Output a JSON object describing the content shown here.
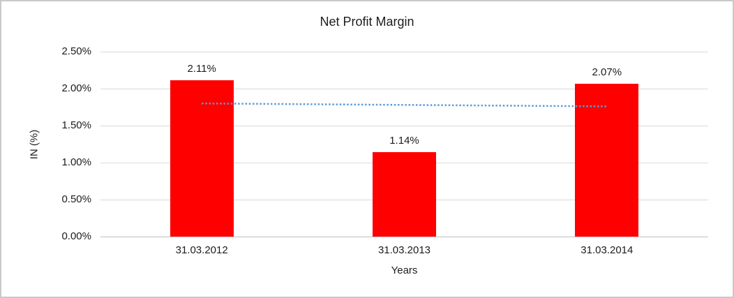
{
  "frame": {
    "background": "#ffffff",
    "border_color": "#c9c9c9"
  },
  "chart_data": {
    "type": "bar",
    "title": "Net Profit Margin",
    "xlabel": "Years",
    "ylabel": "IN (%)",
    "categories": [
      "31.03.2012",
      "31.03.2013",
      "31.03.2014"
    ],
    "values": [
      2.11,
      1.14,
      2.07
    ],
    "data_labels": [
      "2.11%",
      "1.14%",
      "2.07%"
    ],
    "ylim": [
      0,
      2.5
    ],
    "yticks": [
      {
        "v": 0.0,
        "label": "0.00%"
      },
      {
        "v": 0.5,
        "label": "0.50%"
      },
      {
        "v": 1.0,
        "label": "1.00%"
      },
      {
        "v": 1.5,
        "label": "1.50%"
      },
      {
        "v": 2.0,
        "label": "2.00%"
      },
      {
        "v": 2.5,
        "label": "2.50%"
      }
    ],
    "grid": true,
    "legend": "none",
    "bar_color": "#ff0000",
    "grid_color": "#d9d9d9",
    "axis_line_color": "#bfbfbf",
    "trendline": {
      "type": "linear",
      "line_style": "dotted",
      "color": "#5b9bd5",
      "start_value": 1.8,
      "end_value": 1.76
    }
  }
}
